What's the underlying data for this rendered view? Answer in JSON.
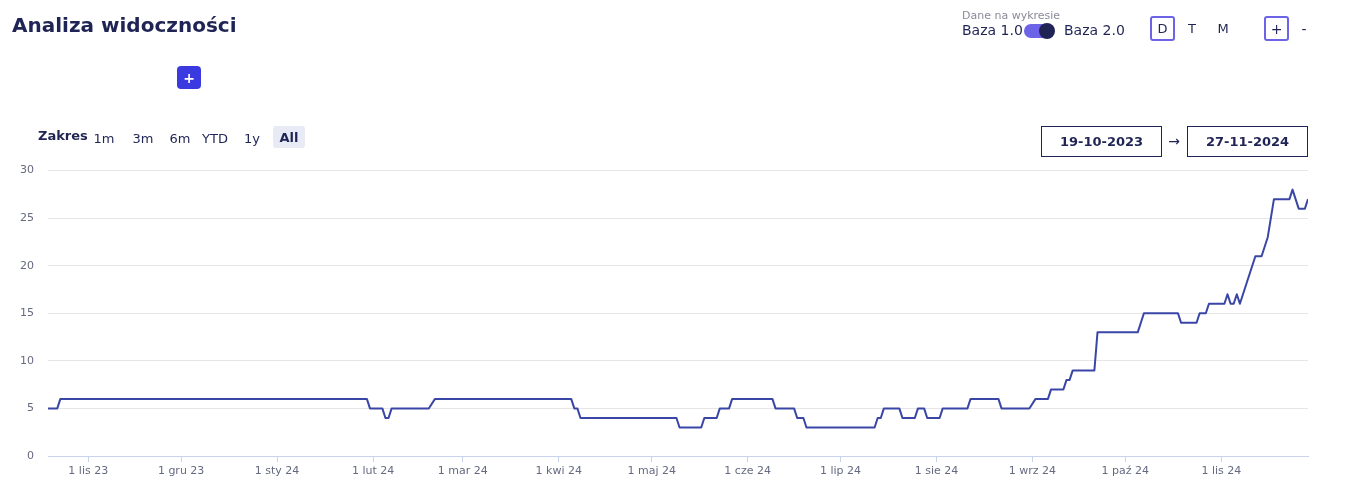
{
  "chart_data": {
    "type": "line",
    "title": "Analiza widoczności",
    "annotations": [
      "Dane na wykresie",
      "Baza 1.0",
      "Baza 2.0",
      "D",
      "T",
      "M",
      "+",
      "-",
      "+",
      "Zakres",
      "1m",
      "3m",
      "6m",
      "YTD",
      "1y",
      "All",
      "19-10-2023",
      "→",
      "27-11-2024"
    ],
    "series": [
      {
        "color": "#3a46a6",
        "x": [
          "2023-10-19",
          "2023-10-22",
          "2023-10-23",
          "2024-01-30",
          "2024-01-31",
          "2024-02-04",
          "2024-02-05",
          "2024-02-06",
          "2024-02-07",
          "2024-02-19",
          "2024-02-21",
          "2024-04-05",
          "2024-04-06",
          "2024-04-07",
          "2024-04-08",
          "2024-05-09",
          "2024-05-10",
          "2024-05-17",
          "2024-05-18",
          "2024-05-22",
          "2024-05-23",
          "2024-05-26",
          "2024-05-27",
          "2024-06-09",
          "2024-06-10",
          "2024-06-16",
          "2024-06-17",
          "2024-06-19",
          "2024-06-20",
          "2024-07-12",
          "2024-07-13",
          "2024-07-14",
          "2024-07-15",
          "2024-07-20",
          "2024-07-21",
          "2024-07-25",
          "2024-07-26",
          "2024-07-28",
          "2024-07-29",
          "2024-08-02",
          "2024-08-03",
          "2024-08-11",
          "2024-08-12",
          "2024-08-21",
          "2024-08-22",
          "2024-08-31",
          "2024-09-02",
          "2024-09-06",
          "2024-09-07",
          "2024-09-11",
          "2024-09-12",
          "2024-09-13",
          "2024-09-14",
          "2024-09-21",
          "2024-09-22",
          "2024-10-05",
          "2024-10-07",
          "2024-10-18",
          "2024-10-19",
          "2024-10-24",
          "2024-10-25",
          "2024-10-27",
          "2024-10-28",
          "2024-11-02",
          "2024-11-03",
          "2024-11-04",
          "2024-11-05",
          "2024-11-06",
          "2024-11-07",
          "2024-11-12",
          "2024-11-14",
          "2024-11-15",
          "2024-11-16",
          "2024-11-18",
          "2024-11-23",
          "2024-11-24",
          "2024-11-26",
          "2024-11-28",
          "2024-11-29"
        ],
        "values": [
          5,
          5,
          6,
          6,
          5,
          5,
          4,
          4,
          5,
          5,
          6,
          6,
          5,
          5,
          4,
          4,
          3,
          3,
          4,
          4,
          5,
          5,
          6,
          6,
          5,
          5,
          4,
          4,
          3,
          3,
          4,
          4,
          5,
          5,
          4,
          4,
          5,
          5,
          4,
          4,
          5,
          5,
          6,
          6,
          5,
          5,
          6,
          6,
          7,
          7,
          8,
          8,
          9,
          9,
          13,
          13,
          15,
          15,
          14,
          14,
          15,
          15,
          16,
          16,
          17,
          16,
          16,
          17,
          16,
          21,
          21,
          22,
          23,
          27,
          27,
          28,
          26,
          26,
          27
        ]
      }
    ],
    "xlim": [
      "2023-10-19",
      "2024-11-29"
    ],
    "xticks": [
      {
        "value": "2023-11-01",
        "label": "1 lis 23"
      },
      {
        "value": "2023-12-01",
        "label": "1 gru 23"
      },
      {
        "value": "2024-01-01",
        "label": "1 sty 24"
      },
      {
        "value": "2024-02-01",
        "label": "1 lut 24"
      },
      {
        "value": "2024-03-01",
        "label": "1 mar 24"
      },
      {
        "value": "2024-04-01",
        "label": "1 kwi 24"
      },
      {
        "value": "2024-05-01",
        "label": "1 maj 24"
      },
      {
        "value": "2024-06-01",
        "label": "1 cze 24"
      },
      {
        "value": "2024-07-01",
        "label": "1 lip 24"
      },
      {
        "value": "2024-08-01",
        "label": "1 sie 24"
      },
      {
        "value": "2024-09-01",
        "label": "1 wrz 24"
      },
      {
        "value": "2024-10-01",
        "label": "1 paź 24"
      },
      {
        "value": "2024-11-01",
        "label": "1 lis 24"
      }
    ],
    "ylim": [
      0,
      30
    ],
    "yticks": [
      0,
      5,
      10,
      15,
      20,
      25,
      30
    ],
    "grid": "y",
    "legend": false,
    "marker": "none",
    "line_style": "solid"
  }
}
